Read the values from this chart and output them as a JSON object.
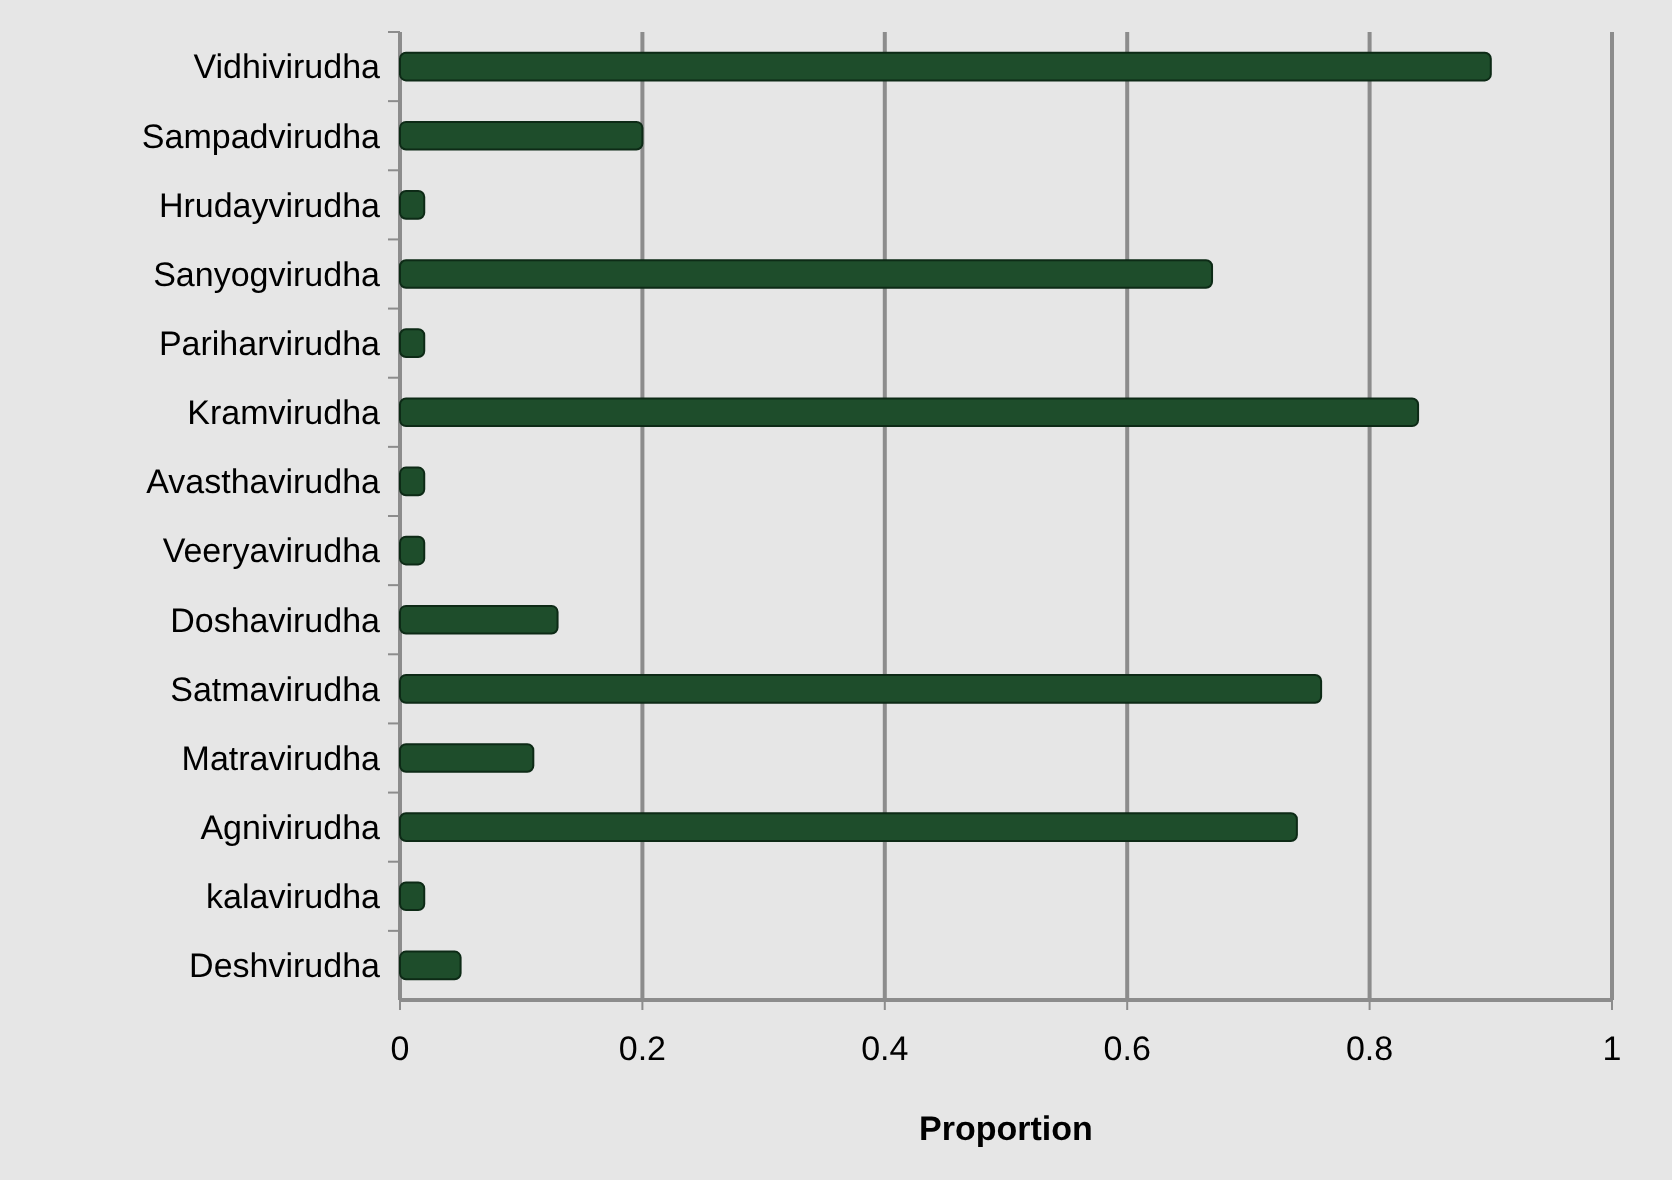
{
  "chart_data": {
    "type": "bar",
    "orientation": "horizontal",
    "xlabel": "Proportion",
    "categories": [
      "Vidhivirudha",
      "Sampadvirudha",
      "Hrudayvirudha",
      "Sanyogvirudha",
      "Pariharvirudha",
      "Kramvirudha",
      "Avasthavirudha",
      "Veeryavirudha",
      "Doshavirudha",
      "Satmavirudha",
      "Matravirudha",
      "Agnivirudha",
      "kalavirudha",
      "Deshvirudha"
    ],
    "values": [
      0.9,
      0.2,
      0.02,
      0.67,
      0.02,
      0.84,
      0.02,
      0.02,
      0.13,
      0.76,
      0.11,
      0.74,
      0.02,
      0.05
    ],
    "color": "#1e4d2b",
    "xlim": [
      0,
      1
    ],
    "xticks": [
      0,
      0.2,
      0.4,
      0.6,
      0.8,
      1
    ],
    "grid": "x"
  }
}
